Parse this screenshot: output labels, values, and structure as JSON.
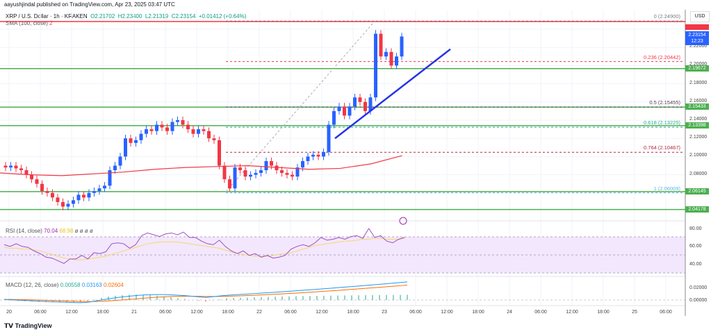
{
  "header": {
    "publisher": "aayushjindal published on TradingView.com, Apr 23, 2025 03:47 UTC",
    "symbol": "XRP / U.S. Dollar · 1h · KRAKEN",
    "open": "O2.21702",
    "high": "H2.23400",
    "low": "L2.21319",
    "close": "C2.23154",
    "change": "+0.01412 (+0.64%)",
    "sma": "SMA (100, close)",
    "sma_value": "2"
  },
  "currency": "USD",
  "current_price": {
    "value": "2.23154",
    "countdown": "12:23"
  },
  "price_ticks": [
    "2.24000",
    "2.22000",
    "2.20000",
    "2.18000",
    "2.16000",
    "2.14000",
    "2.12000",
    "2.10000",
    "2.08000"
  ],
  "levels": [
    {
      "label": "2.19672",
      "price": 2.19672
    },
    {
      "label": "2.15433",
      "price": 2.15433
    },
    {
      "label": "2.13398",
      "price": 2.13398
    },
    {
      "label": "2.06145",
      "price": 2.06145
    },
    {
      "label": "2.04178",
      "price": 2.04178
    }
  ],
  "fib": [
    {
      "label": "0 (2.24900)",
      "price": 2.249,
      "color": "#787b86"
    },
    {
      "label": "0.236 (2.20442)",
      "price": 2.20442,
      "color": "#f23645"
    },
    {
      "label": "0.5 (2.15455)",
      "price": 2.15455,
      "color": "#5d3a5e"
    },
    {
      "label": "0.618 (2.13225)",
      "price": 2.13225,
      "color": "#22ab94"
    },
    {
      "label": "0.764 (2.10467)",
      "price": 2.10467,
      "color": "#b2283c"
    },
    {
      "label": "1 (2.06009)",
      "price": 2.06009,
      "color": "#5bb5e6"
    }
  ],
  "rsi": {
    "label": "RSI (14, close)",
    "value": "70.04",
    "ma": "68.98",
    "extras": "ø ø ø ø",
    "ticks": [
      "80.00",
      "60.00",
      "40.00"
    ],
    "values": [
      62,
      60,
      63,
      60,
      59,
      55,
      52,
      48,
      47,
      44,
      41,
      46,
      46,
      50,
      46,
      53,
      52,
      54,
      63,
      64,
      63,
      58,
      62,
      72,
      75,
      73,
      71,
      74,
      75,
      73,
      76,
      70,
      70,
      66,
      63,
      62,
      67,
      60,
      55,
      52,
      55,
      50,
      52,
      48,
      50,
      47,
      48,
      50,
      57,
      60,
      62,
      60,
      64,
      70,
      67,
      68,
      70,
      68,
      71,
      72,
      69,
      80,
      70,
      72,
      66,
      64,
      68,
      70
    ],
    "ma_values": [
      59,
      58,
      58,
      57,
      57,
      56,
      55,
      53,
      51,
      49,
      47,
      46,
      45,
      45,
      46,
      47,
      48,
      49,
      51,
      53,
      55,
      57,
      59,
      61,
      63,
      64,
      65,
      65,
      65,
      65,
      64,
      63,
      62,
      61,
      60,
      59,
      58,
      56,
      54,
      52,
      51,
      50,
      49,
      49,
      49,
      50,
      51,
      52,
      53,
      55,
      57,
      59,
      61,
      62,
      63,
      64,
      65,
      66,
      66,
      67,
      68,
      68,
      69,
      69,
      68,
      68,
      68,
      69
    ]
  },
  "macd": {
    "label": "MACD (12, 26, close)",
    "hist": "0.00558",
    "macd": "0.03163",
    "signal": "0.02604",
    "ticks": [
      "0.02000",
      "0.00000"
    ]
  },
  "time_labels": [
    "20",
    "06:00",
    "12:00",
    "18:00",
    "21",
    "06:00",
    "12:00",
    "18:00",
    "22",
    "06:00",
    "12:00",
    "18:00",
    "23",
    "06:00",
    "12:00",
    "18:00",
    "24",
    "06:00",
    "12:00",
    "18:00",
    "25",
    "06:00"
  ],
  "brand": "TradingView",
  "colors": {
    "up": "#2962ff",
    "down": "#f23645",
    "level": "#4caf50",
    "trend": "#2433e6",
    "sma": "#f23645"
  },
  "chart_data": {
    "type": "candlestick",
    "interval": "1h",
    "closes": [
      2.088,
      2.09,
      2.087,
      2.085,
      2.08,
      2.075,
      2.07,
      2.062,
      2.06,
      2.055,
      2.05,
      2.045,
      2.048,
      2.052,
      2.058,
      2.055,
      2.06,
      2.062,
      2.065,
      2.068,
      2.085,
      2.09,
      2.1,
      2.12,
      2.115,
      2.118,
      2.125,
      2.13,
      2.128,
      2.135,
      2.132,
      2.128,
      2.138,
      2.14,
      2.135,
      2.13,
      2.125,
      2.13,
      2.128,
      2.12,
      2.118,
      2.09,
      2.075,
      2.065,
      2.088,
      2.085,
      2.078,
      2.08,
      2.082,
      2.085,
      2.095,
      2.09,
      2.085,
      2.082,
      2.08,
      2.078,
      2.088,
      2.095,
      2.1,
      2.102,
      2.1,
      2.105,
      2.135,
      2.15,
      2.155,
      2.145,
      2.155,
      2.165,
      2.16,
      2.15,
      2.165,
      2.235,
      2.21,
      2.215,
      2.2,
      2.21,
      2.232
    ],
    "sma100": [
      2.082,
      2.08,
      2.079,
      2.081,
      2.083,
      2.086,
      2.088,
      2.089,
      2.09,
      2.088,
      2.086,
      2.087,
      2.092,
      2.101
    ],
    "trendline": [
      [
        2.12
      ],
      [
        2.218
      ]
    ]
  }
}
